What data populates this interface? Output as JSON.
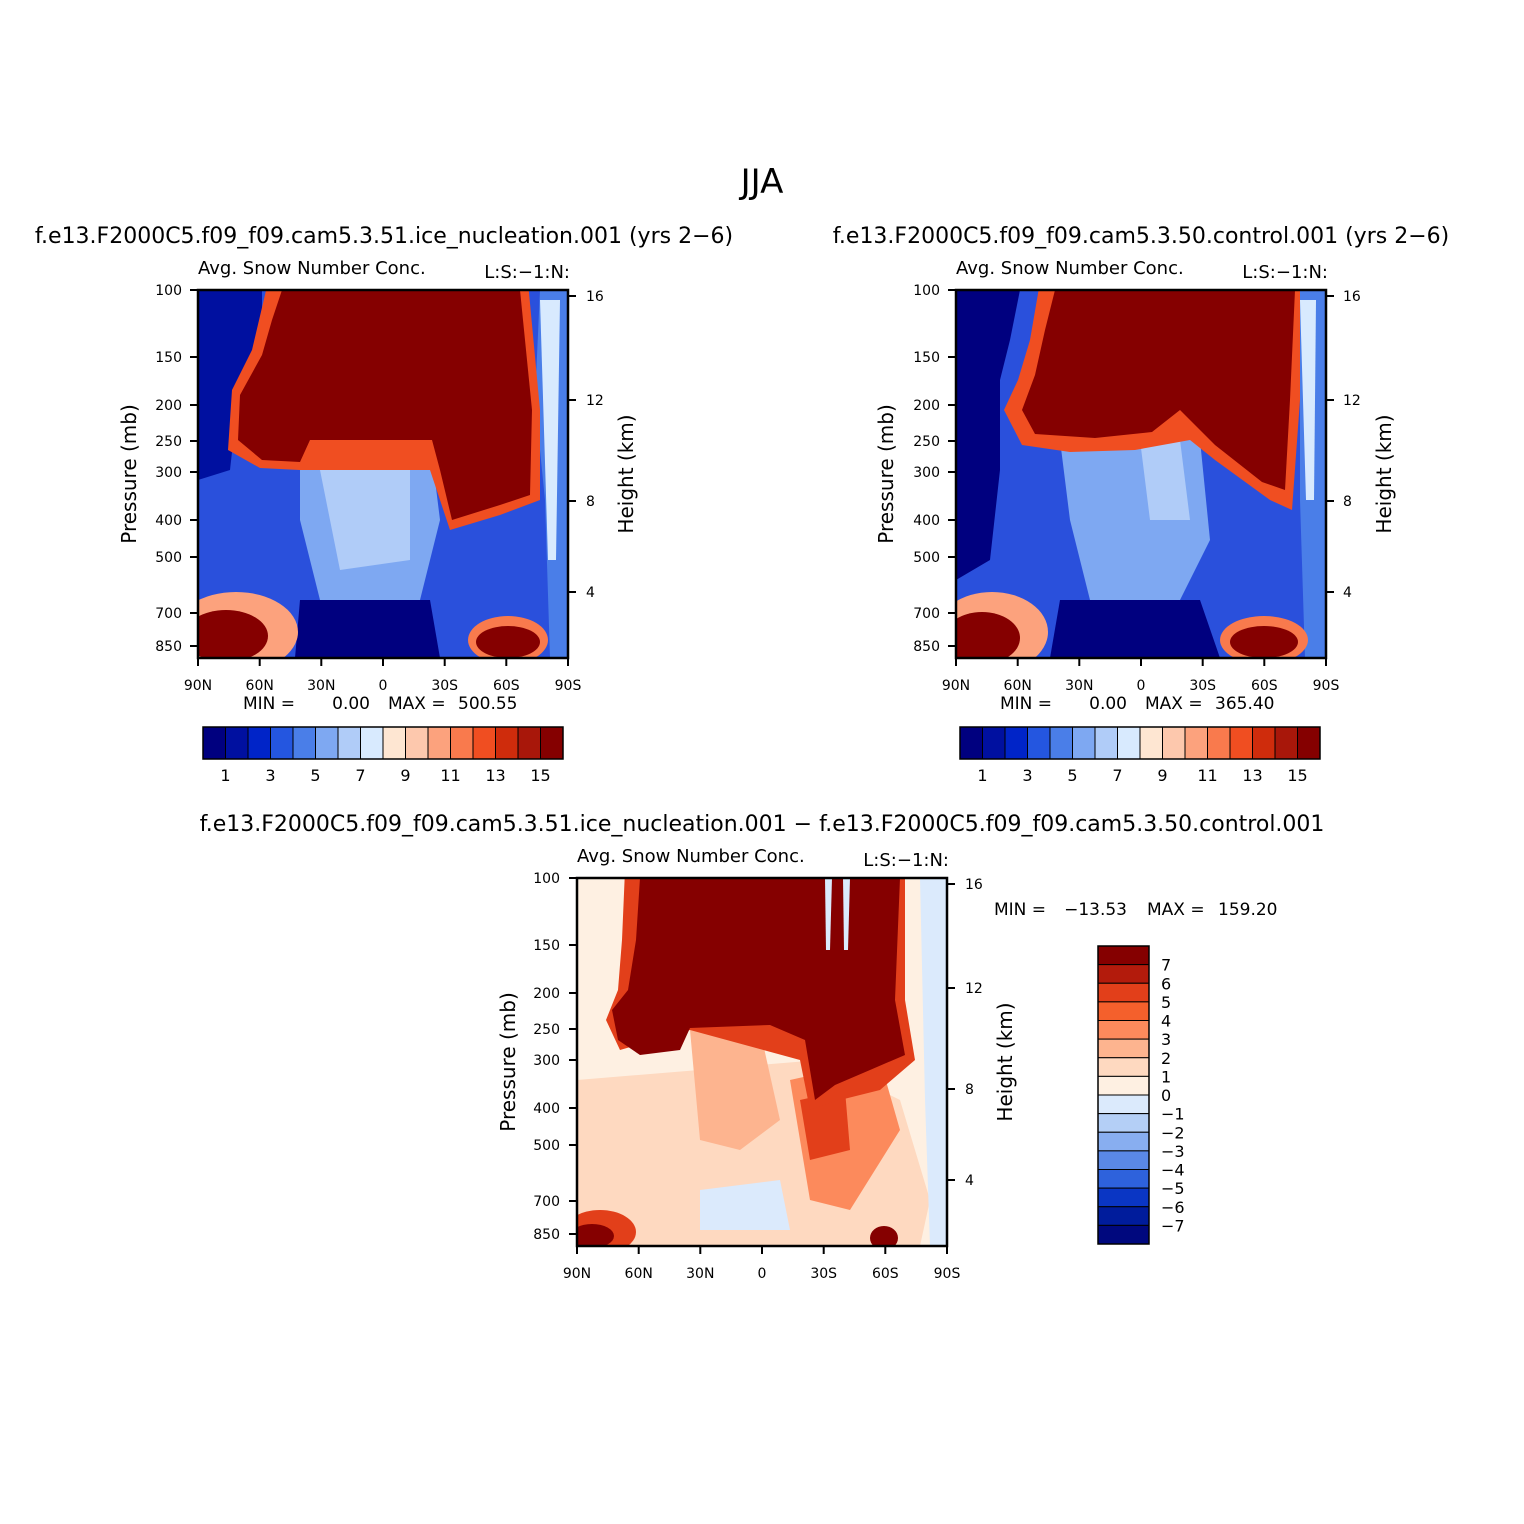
{
  "figure_title": "JJA",
  "chart_data": [
    {
      "type": "heatmap",
      "title": "f.e13.F2000C5.f09_f09.cam5.3.51.ice_nucleation.001 (yrs 2−6)",
      "subtitle_left": "Avg. Snow Number Conc.",
      "subtitle_right": "L:S:−1:N:",
      "ylabel": "Pressure (mb)",
      "ylabel_right": "Height (km)",
      "x_ticks": [
        "90N",
        "60N",
        "30N",
        "0",
        "30S",
        "60S",
        "90S"
      ],
      "y_ticks": [
        "100",
        "150",
        "200",
        "250",
        "300",
        "400",
        "500",
        "700",
        "850"
      ],
      "y2_ticks": [
        "16",
        "12",
        "8",
        "4"
      ],
      "stats_min_label": "MIN =",
      "stats_min": "0.00",
      "stats_max_label": "MAX =",
      "stats_max": "500.55",
      "colorbar_labels": [
        "1",
        "3",
        "5",
        "7",
        "9",
        "11",
        "13",
        "15"
      ],
      "colorbar_colors": [
        "#00007f",
        "#0010a0",
        "#0024c8",
        "#2456e0",
        "#4a7ee8",
        "#7ea8f2",
        "#b0ccf8",
        "#d8eafe",
        "#fee6d2",
        "#fdc8ad",
        "#fca27d",
        "#f97a4d",
        "#f04e21",
        "#cf2c0c",
        "#a8170a",
        "#850000"
      ]
    },
    {
      "type": "heatmap",
      "title": "f.e13.F2000C5.f09_f09.cam5.3.50.control.001 (yrs 2−6)",
      "subtitle_left": "Avg. Snow Number Conc.",
      "subtitle_right": "L:S:−1:N:",
      "ylabel": "Pressure (mb)",
      "ylabel_right": "Height (km)",
      "x_ticks": [
        "90N",
        "60N",
        "30N",
        "0",
        "30S",
        "60S",
        "90S"
      ],
      "y_ticks": [
        "100",
        "150",
        "200",
        "250",
        "300",
        "400",
        "500",
        "700",
        "850"
      ],
      "y2_ticks": [
        "16",
        "12",
        "8",
        "4"
      ],
      "stats_min_label": "MIN =",
      "stats_min": "0.00",
      "stats_max_label": "MAX =",
      "stats_max": "365.40",
      "colorbar_labels": [
        "1",
        "3",
        "5",
        "7",
        "9",
        "11",
        "13",
        "15"
      ],
      "colorbar_colors": [
        "#00007f",
        "#0010a0",
        "#0024c8",
        "#2456e0",
        "#4a7ee8",
        "#7ea8f2",
        "#b0ccf8",
        "#d8eafe",
        "#fee6d2",
        "#fdc8ad",
        "#fca27d",
        "#f97a4d",
        "#f04e21",
        "#cf2c0c",
        "#a8170a",
        "#850000"
      ]
    },
    {
      "type": "heatmap",
      "title": "f.e13.F2000C5.f09_f09.cam5.3.51.ice_nucleation.001 − f.e13.F2000C5.f09_f09.cam5.3.50.control.001",
      "subtitle_left": "Avg. Snow Number Conc.",
      "subtitle_right": "L:S:−1:N:",
      "ylabel": "Pressure (mb)",
      "ylabel_right": "Height (km)",
      "x_ticks": [
        "90N",
        "60N",
        "30N",
        "0",
        "30S",
        "60S",
        "90S"
      ],
      "y_ticks": [
        "100",
        "150",
        "200",
        "250",
        "300",
        "400",
        "500",
        "700",
        "850"
      ],
      "y2_ticks": [
        "16",
        "12",
        "8",
        "4"
      ],
      "stats_min_label": "MIN =",
      "stats_min": "−13.53",
      "stats_max_label": "MAX =",
      "stats_max": "159.20",
      "colorbar_labels": [
        "7",
        "6",
        "5",
        "4",
        "3",
        "2",
        "1",
        "0",
        "−1",
        "−2",
        "−3",
        "−4",
        "−5",
        "−6",
        "−7"
      ],
      "colorbar_colors": [
        "#850000",
        "#b31b0c",
        "#e23f1a",
        "#f4602c",
        "#fc8a5c",
        "#fdb48f",
        "#fed9c0",
        "#fef0e2",
        "#dbeafc",
        "#b4cff6",
        "#88aef0",
        "#5a88e6",
        "#2e62dc",
        "#0a36c4",
        "#001c9c",
        "#00087e"
      ]
    }
  ]
}
